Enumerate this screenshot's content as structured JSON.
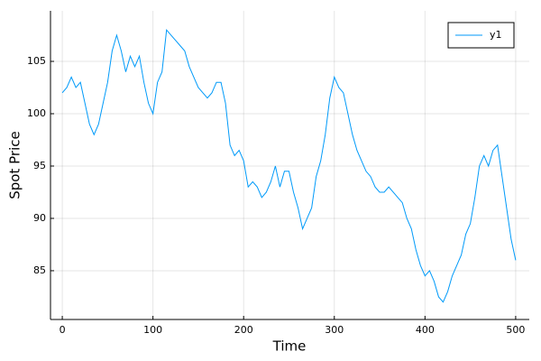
{
  "chart_data": {
    "type": "line",
    "x_label": "Time",
    "y_label": "Spot Price",
    "x": [
      0,
      5,
      10,
      15,
      20,
      25,
      30,
      35,
      40,
      45,
      50,
      55,
      60,
      65,
      70,
      75,
      80,
      85,
      90,
      95,
      100,
      105,
      110,
      115,
      120,
      125,
      130,
      135,
      140,
      145,
      150,
      155,
      160,
      165,
      170,
      175,
      180,
      185,
      190,
      195,
      200,
      205,
      210,
      215,
      220,
      225,
      230,
      235,
      240,
      245,
      250,
      255,
      260,
      265,
      270,
      275,
      280,
      285,
      290,
      295,
      300,
      305,
      310,
      315,
      320,
      325,
      330,
      335,
      340,
      345,
      350,
      355,
      360,
      365,
      370,
      375,
      380,
      385,
      390,
      395,
      400,
      405,
      410,
      415,
      420,
      425,
      430,
      435,
      440,
      445,
      450,
      455,
      460,
      465,
      470,
      475,
      480,
      485,
      490,
      495,
      500
    ],
    "series": [
      {
        "name": "y1",
        "color": "#009af9",
        "values": [
          102,
          102.5,
          103.5,
          102.5,
          103,
          101,
          99,
          98,
          99,
          101,
          103,
          106,
          107.5,
          106,
          104,
          105.5,
          104.5,
          105.5,
          103,
          101,
          100,
          103,
          104,
          108,
          107.5,
          107,
          106.5,
          106,
          104.5,
          103.5,
          102.5,
          102,
          101.5,
          102,
          103,
          103,
          101,
          97,
          96,
          96.5,
          95.5,
          93,
          93.5,
          93,
          92,
          92.5,
          93.5,
          95,
          93,
          94.5,
          94.5,
          92.5,
          91,
          89,
          90,
          91,
          94,
          95.5,
          98,
          101.5,
          103.5,
          102.5,
          102,
          100,
          98,
          96.5,
          95.5,
          94.5,
          94,
          93,
          92.5,
          92.5,
          93,
          92.5,
          92,
          91.5,
          90,
          89,
          87,
          85.5,
          84.5,
          85,
          84,
          82.5,
          82,
          83,
          84.5,
          85.5,
          86.5,
          88.5,
          89.5,
          92,
          95,
          96,
          95,
          96.5,
          97,
          94,
          91,
          88,
          86
        ]
      }
    ],
    "xlim": [
      -13,
      515
    ],
    "ylim": [
      80.34,
      109.83
    ],
    "xticks": [
      0,
      100,
      200,
      300,
      400,
      500
    ],
    "yticks": [
      85,
      90,
      95,
      100,
      105
    ],
    "grid": true,
    "legend": "upper right"
  }
}
